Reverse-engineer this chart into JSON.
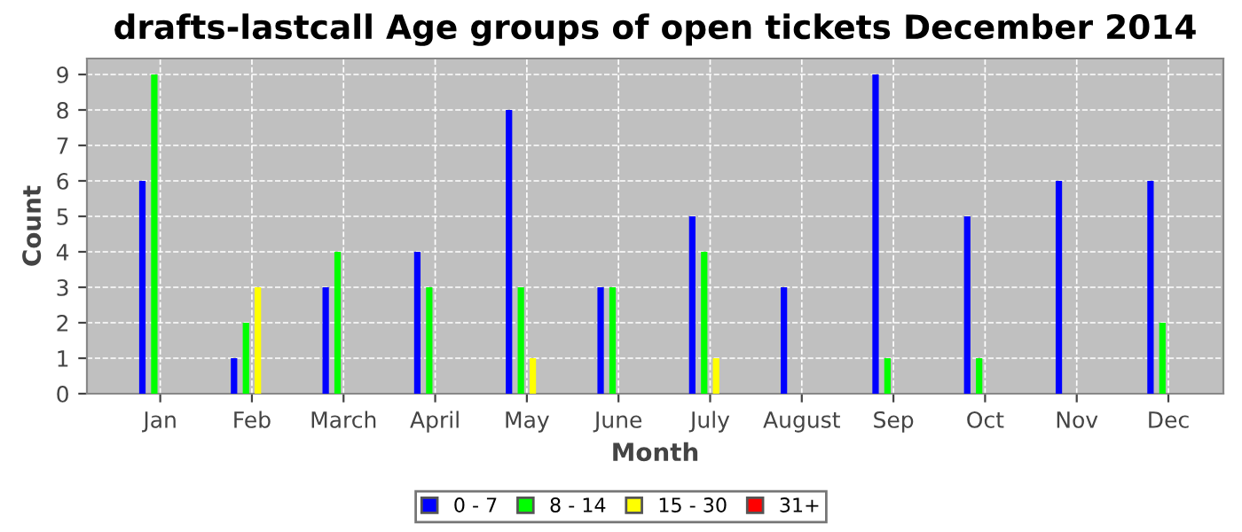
{
  "chart_data": {
    "type": "bar",
    "title": "drafts-lastcall Age groups of open tickets December 2014",
    "xlabel": "Month",
    "ylabel": "Count",
    "categories": [
      "Jan",
      "Feb",
      "March",
      "April",
      "May",
      "June",
      "July",
      "August",
      "Sep",
      "Oct",
      "Nov",
      "Dec"
    ],
    "series": [
      {
        "name": "0 - 7",
        "color": "#0000ff",
        "values": [
          6,
          1,
          3,
          4,
          8,
          3,
          5,
          3,
          9,
          5,
          6,
          6
        ]
      },
      {
        "name": "8 - 14",
        "color": "#00ff00",
        "values": [
          9,
          2,
          4,
          3,
          3,
          3,
          4,
          null,
          1,
          1,
          null,
          2
        ]
      },
      {
        "name": "15 - 30",
        "color": "#ffff00",
        "values": [
          null,
          3,
          null,
          null,
          1,
          null,
          1,
          null,
          null,
          null,
          null,
          null
        ]
      },
      {
        "name": "31+",
        "color": "#ff0000",
        "values": [
          null,
          null,
          null,
          null,
          null,
          null,
          null,
          null,
          null,
          null,
          null,
          null
        ]
      }
    ],
    "ylim": [
      0,
      9.45
    ],
    "yticks": [
      0,
      1,
      2,
      3,
      4,
      5,
      6,
      7,
      8,
      9
    ],
    "grid": true,
    "legend": "bottom"
  }
}
